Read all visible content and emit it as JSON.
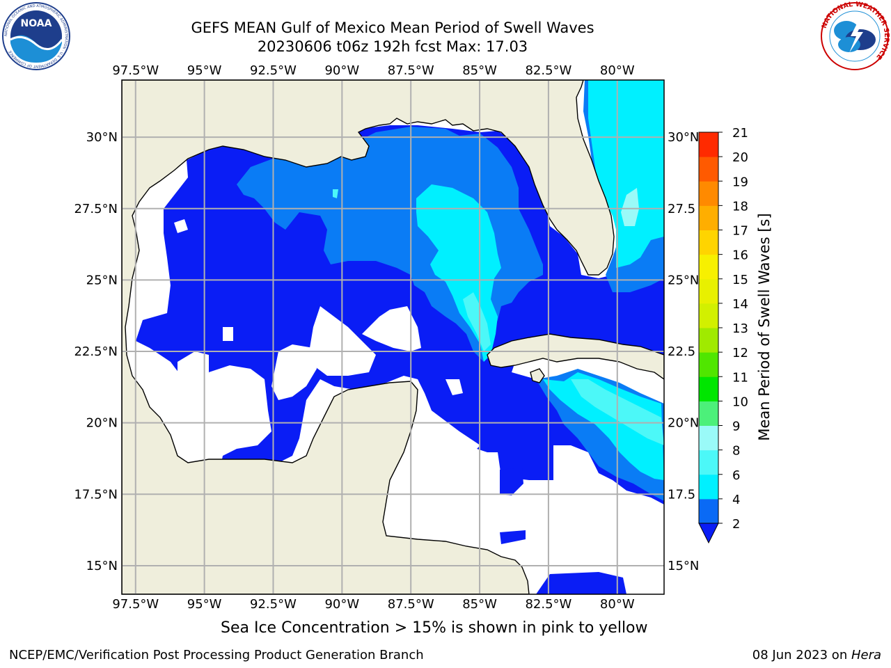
{
  "header": {
    "title_line1": "GEFS MEAN Gulf of Mexico Mean Period of Swell Waves",
    "title_line2": "20230606 t06z 192h fcst   Max: 17.03"
  },
  "logos": {
    "noaa_text": "NOAA",
    "noaa_ring_text": "NATIONAL OCEANIC AND ATMOSPHERIC ADMINISTRATION · U.S. DEPARTMENT OF COMMERCE",
    "nws_ring_text": "NATIONAL WEATHER SERVICE"
  },
  "map": {
    "lon_labels": [
      "97.5°W",
      "95°W",
      "92.5°W",
      "90°W",
      "87.5°W",
      "85°W",
      "82.5°W",
      "80°W"
    ],
    "lon_values": [
      -97.5,
      -95,
      -92.5,
      -90,
      -87.5,
      -85,
      -82.5,
      -80
    ],
    "lat_labels_left": [
      "30°N",
      "27.5°N",
      "25°N",
      "22.5°N",
      "20°N",
      "17.5°N",
      "15°N"
    ],
    "lat_labels_right": [
      "30°N",
      "27.5",
      "25°N",
      "22.5",
      "20°N",
      "17.5",
      "15°N"
    ],
    "lat_values": [
      30,
      27.5,
      25,
      22.5,
      20,
      17.5,
      15
    ],
    "extent": {
      "lon_min": -98,
      "lon_max": -78.3,
      "lat_min": 14.0,
      "lat_max": 32.0
    },
    "colors": {
      "land": "#efeedc",
      "grid": "#b0b0b0",
      "level_2_4": "#0a1df5",
      "level_4_6": "#0a7cf5",
      "level_6_8": "#00f0ff",
      "level_8_9": "#4cf8f8",
      "level_9_10": "#9afaf8",
      "ice_yellow": "#f7f000",
      "ice_orange": "#ffae00"
    }
  },
  "colorbar": {
    "label": "Mean Period of Swell Waves [s]",
    "ticks": [
      "2",
      "4",
      "6",
      "8",
      "9",
      "10",
      "11",
      "12",
      "13",
      "14",
      "15",
      "16",
      "17",
      "18",
      "19",
      "20",
      "21"
    ],
    "colors": [
      "#0a6af5",
      "#00f0ff",
      "#4cf8f8",
      "#9afaf8",
      "#4cf07a",
      "#00e600",
      "#50e600",
      "#a0ea00",
      "#d2f000",
      "#e8f000",
      "#f7f000",
      "#ffd400",
      "#ffae00",
      "#ff8a00",
      "#ff5a00",
      "#ff2a00",
      "#ff0000"
    ],
    "extend_color": "#0a1df5"
  },
  "note": "Sea Ice Concentration > 15% is shown in pink to yellow",
  "footer": {
    "left": "NCEP/EMC/Verification Post Processing Product Generation Branch",
    "date": "08 Jun 2023 on ",
    "machine": "Hera"
  }
}
